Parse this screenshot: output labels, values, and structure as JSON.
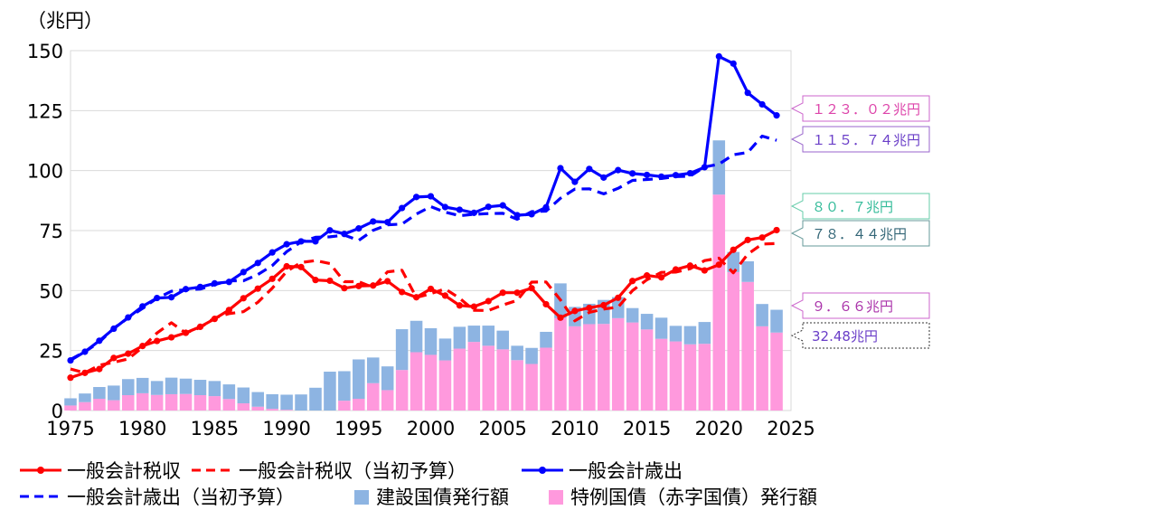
{
  "chart_data": {
    "type": "bar+line",
    "y_unit_label": "（兆円）",
    "ylim": [
      0,
      150
    ],
    "yticks": [
      0,
      25,
      50,
      75,
      100,
      125,
      150
    ],
    "xlim": [
      1975,
      2025
    ],
    "xticks": [
      1975,
      1980,
      1985,
      1990,
      1995,
      2000,
      2005,
      2010,
      2015,
      2020,
      2025
    ],
    "years": [
      1975,
      1976,
      1977,
      1978,
      1979,
      1980,
      1981,
      1982,
      1983,
      1984,
      1985,
      1986,
      1987,
      1988,
      1989,
      1990,
      1991,
      1992,
      1993,
      1994,
      1995,
      1996,
      1997,
      1998,
      1999,
      2000,
      2001,
      2002,
      2003,
      2004,
      2005,
      2006,
      2007,
      2008,
      2009,
      2010,
      2011,
      2012,
      2013,
      2014,
      2015,
      2016,
      2017,
      2018,
      2019,
      2020,
      2021,
      2022,
      2023,
      2024
    ],
    "series": [
      {
        "name": "一般会計税収",
        "kind": "line",
        "style": "solid",
        "color": "#ff0000",
        "values": [
          13.7,
          15.7,
          17.3,
          21.9,
          23.7,
          26.9,
          29.0,
          30.5,
          32.4,
          34.9,
          38.2,
          41.9,
          46.8,
          50.8,
          54.9,
          60.1,
          59.8,
          54.4,
          54.1,
          51.0,
          51.9,
          52.1,
          53.9,
          49.4,
          47.2,
          50.7,
          47.9,
          43.8,
          43.3,
          45.6,
          49.1,
          49.1,
          51.0,
          44.3,
          38.7,
          41.5,
          42.8,
          43.9,
          47.0,
          54.0,
          56.3,
          55.5,
          58.8,
          60.4,
          58.4,
          60.8,
          67.0,
          71.1,
          72.1,
          75.2
        ]
      },
      {
        "name": "一般会計税収（当初予算）",
        "kind": "line",
        "style": "dashed",
        "color": "#ff0000",
        "values": [
          17.3,
          15.7,
          18.9,
          20.1,
          21.5,
          26.4,
          32.3,
          36.6,
          32.3,
          34.6,
          38.6,
          40.4,
          41.2,
          45.1,
          51.0,
          58.0,
          61.7,
          62.5,
          61.3,
          53.7,
          53.7,
          51.3,
          57.8,
          58.5,
          47.1,
          48.7,
          50.7,
          46.8,
          41.8,
          41.7,
          44.0,
          45.9,
          53.5,
          53.6,
          46.1,
          37.4,
          40.9,
          42.3,
          43.1,
          50.0,
          54.5,
          57.6,
          57.7,
          59.1,
          62.5,
          63.5,
          57.4,
          65.2,
          69.4,
          69.6
        ]
      },
      {
        "name": "一般会計歳出",
        "kind": "line",
        "style": "solid",
        "color": "#0000ff",
        "values": [
          20.9,
          24.5,
          29.1,
          34.1,
          38.8,
          43.4,
          46.9,
          47.2,
          50.6,
          51.5,
          53.0,
          53.6,
          57.7,
          61.5,
          65.9,
          69.3,
          70.5,
          70.5,
          75.1,
          73.6,
          75.9,
          78.8,
          78.5,
          84.4,
          89.0,
          89.3,
          84.8,
          83.7,
          82.4,
          84.9,
          85.5,
          81.4,
          81.8,
          84.7,
          101.0,
          95.3,
          100.7,
          97.1,
          100.2,
          98.8,
          98.2,
          97.5,
          98.1,
          98.9,
          101.4,
          147.6,
          144.6,
          132.4,
          127.6,
          123.0
        ]
      },
      {
        "name": "一般会計歳出（当初予算）",
        "kind": "line",
        "style": "dashed",
        "color": "#0000ff",
        "values": [
          21.3,
          24.5,
          28.5,
          34.3,
          38.6,
          42.6,
          46.8,
          49.7,
          50.4,
          50.6,
          52.5,
          54.1,
          54.1,
          56.7,
          60.4,
          66.2,
          70.3,
          72.2,
          72.4,
          73.1,
          70.9,
          75.1,
          77.4,
          77.7,
          81.9,
          85.0,
          82.7,
          81.2,
          81.8,
          82.1,
          82.2,
          79.7,
          82.9,
          83.1,
          88.5,
          92.3,
          92.4,
          90.3,
          92.6,
          95.9,
          96.3,
          96.7,
          97.5,
          97.7,
          101.5,
          102.7,
          106.6,
          107.6,
          114.4,
          112.6
        ]
      },
      {
        "name": "建設国債発行額",
        "kind": "bar",
        "color": "#8db4e2",
        "values": [
          3.0,
          3.6,
          4.9,
          6.1,
          6.7,
          6.4,
          5.8,
          6.9,
          6.4,
          6.4,
          6.3,
          6.1,
          6.6,
          6.1,
          6.1,
          6.3,
          6.7,
          9.5,
          16.2,
          12.3,
          16.4,
          10.7,
          9.9,
          17.0,
          13.1,
          11.1,
          9.1,
          9.1,
          6.8,
          8.4,
          7.8,
          6.0,
          6.7,
          6.6,
          14.5,
          8.1,
          8.5,
          10.0,
          8.8,
          6.0,
          6.5,
          8.8,
          6.5,
          7.6,
          9.1,
          22.6,
          8.4,
          8.6,
          9.3,
          9.5
        ]
      },
      {
        "name": "特例国債（赤字国債）発行額",
        "kind": "bar",
        "color": "#ff99dd",
        "values": [
          2.1,
          3.5,
          4.9,
          4.3,
          6.4,
          7.2,
          6.5,
          6.8,
          6.9,
          6.4,
          6.0,
          4.8,
          3.0,
          1.6,
          0.7,
          0.3,
          0,
          0,
          0,
          4.1,
          4.9,
          11.4,
          8.5,
          16.9,
          24.3,
          23.2,
          20.9,
          25.8,
          28.6,
          27.0,
          25.5,
          21.0,
          19.4,
          26.2,
          38.5,
          35.1,
          36.0,
          36.1,
          38.5,
          36.7,
          33.8,
          29.9,
          28.8,
          27.6,
          27.8,
          90.0,
          57.7,
          53.6,
          35.1,
          32.5
        ]
      }
    ],
    "annotations": [
      {
        "text": "１２３．０２兆円",
        "target": "一般会計歳出",
        "value": 123.02,
        "color": "#dd44aa",
        "border": "#cc66cc"
      },
      {
        "text": "１１５．７４兆円",
        "target": "一般会計歳出（当初予算）",
        "value": 115.74,
        "color": "#6a3ec8",
        "border": "#9966cc"
      },
      {
        "text": "８０．７兆円",
        "target": "一般会計税収",
        "value": 80.7,
        "color": "#33bb99",
        "border": "#66ccaa"
      },
      {
        "text": "７８．４４兆円",
        "target": "一般会計税収（当初予算）",
        "value": 78.44,
        "color": "#336677",
        "border": "#669999"
      },
      {
        "text": "９．６６兆円",
        "target": "建設国債発行額",
        "value": 9.66,
        "color": "#aa33aa",
        "border": "#cc66cc"
      },
      {
        "text": "32.48兆円",
        "target": "特例国債（赤字国債）発行額",
        "value": 32.48,
        "color": "#6a3ec8",
        "border": "#333333"
      }
    ]
  }
}
